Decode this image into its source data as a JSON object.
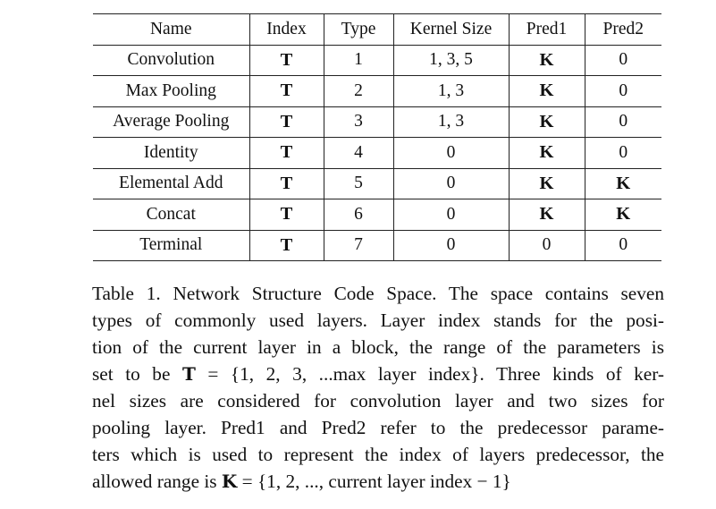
{
  "table": {
    "headers": [
      "Name",
      "Index",
      "Type",
      "Kernel Size",
      "Pred1",
      "Pred2"
    ],
    "rows": [
      [
        "Convolution",
        "T",
        "1",
        "1, 3, 5",
        "K",
        "0"
      ],
      [
        "Max Pooling",
        "T",
        "2",
        "1, 3",
        "K",
        "0"
      ],
      [
        "Average Pooling",
        "T",
        "3",
        "1, 3",
        "K",
        "0"
      ],
      [
        "Identity",
        "T",
        "4",
        "0",
        "K",
        "0"
      ],
      [
        "Elemental Add",
        "T",
        "5",
        "0",
        "K",
        "K"
      ],
      [
        "Concat",
        "T",
        "6",
        "0",
        "K",
        "K"
      ],
      [
        "Terminal",
        "T",
        "7",
        "0",
        "0",
        "0"
      ]
    ]
  },
  "caption": {
    "lines": [
      "Table 1. Network Structure Code Space. The space contains seven",
      "types of commonly used layers. Layer index stands for the posi-",
      "tion of the current layer in a block, the range of the parameters is",
      "set to be",
      "T",
      " = {1, 2, 3, ...max layer index}. Three kinds of ker-",
      "nel sizes are considered for convolution layer and two sizes for",
      "pooling layer. Pred1 and Pred2 refer to the predecessor parame-",
      "ters which is used to represent the index of layers predecessor, the",
      "allowed range is",
      "K",
      " = {1, 2, ..., current layer index − 1}"
    ]
  }
}
